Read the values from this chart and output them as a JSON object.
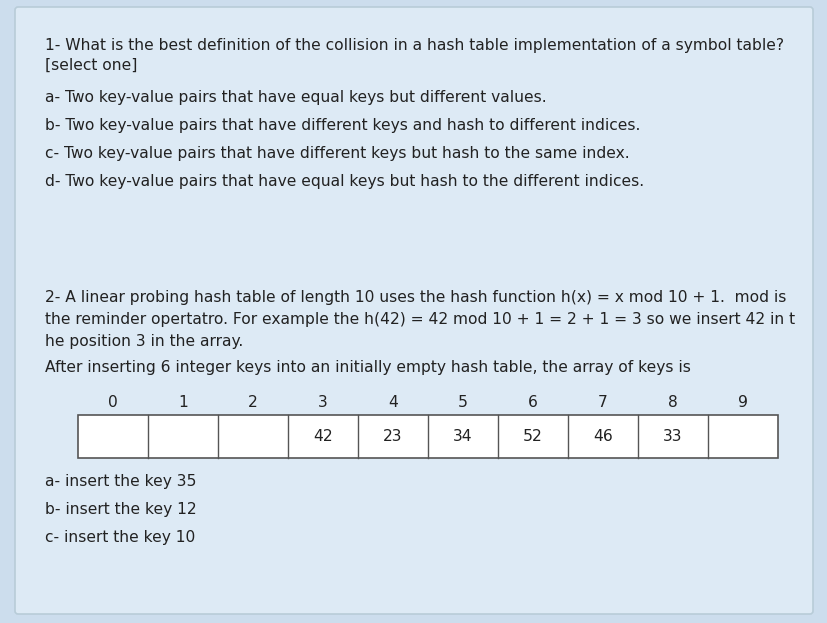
{
  "bg_color": "#ccdded",
  "card_color": "#ddeaf5",
  "card_border": "#b8ccd8",
  "text_color": "#222222",
  "q1_title_line1": "1- What is the best definition of the collision in a hash table implementation of a symbol table?",
  "q1_title_line2": "[select one]",
  "options1": [
    "a- Two key-value pairs that have equal keys but different values.",
    "b- Two key-value pairs that have different keys and hash to different indices.",
    "c- Two key-value pairs that have different keys but hash to the same index.",
    "d- Two key-value pairs that have equal keys but hash to the different indices."
  ],
  "q2_lines": [
    "2- A linear probing hash table of length 10 uses the hash function h(x) = x mod 10 + 1.  mod is",
    "the reminder opertatro. For example the h(42) = 42 mod 10 + 1 = 2 + 1 = 3 so we insert 42 in t",
    "he position 3 in the array.",
    "After inserting 6 integer keys into an initially empty hash table, the array of keys is"
  ],
  "table_indices": [
    "0",
    "1",
    "2",
    "3",
    "4",
    "5",
    "6",
    "7",
    "8",
    "9"
  ],
  "table_values": [
    "",
    "",
    "",
    "42",
    "23",
    "34",
    "52",
    "46",
    "33",
    ""
  ],
  "options2": [
    "a- insert the key 35",
    "b- insert the key 12",
    "c- insert the key 10"
  ],
  "font_size": 11.2,
  "small_font_size": 11.2
}
